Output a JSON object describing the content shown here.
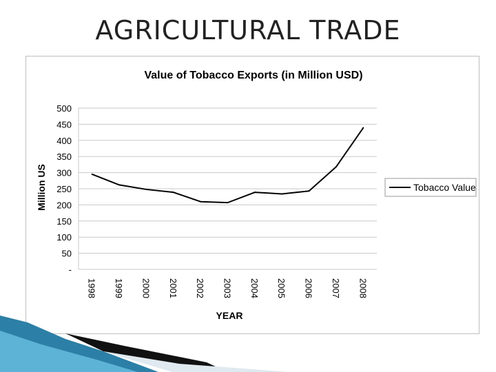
{
  "slide": {
    "title": "AGRICULTURAL TRADE"
  },
  "chart_data": {
    "type": "line",
    "title": "Value of Tobacco Exports (in Million USD)",
    "xlabel": "YEAR",
    "ylabel": "Million US",
    "categories": [
      "1998",
      "1999",
      "2000",
      "2001",
      "2002",
      "2003",
      "2004",
      "2005",
      "2006",
      "2007",
      "2008"
    ],
    "series": [
      {
        "name": "Tobacco Value",
        "values": [
          295,
          262,
          248,
          239,
          210,
          207,
          239,
          234,
          243,
          318,
          439
        ],
        "color": "#000000"
      }
    ],
    "ylim": [
      0,
      500
    ],
    "yticks": [
      "-",
      "50",
      "100",
      "150",
      "200",
      "250",
      "300",
      "350",
      "400",
      "450",
      "500"
    ],
    "grid": true,
    "legend": "right",
    "x_tick_rotation": "vertical"
  }
}
